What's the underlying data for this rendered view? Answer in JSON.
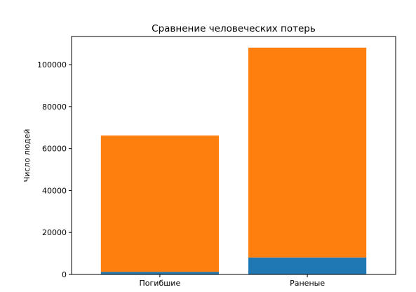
{
  "chart_data": {
    "type": "bar",
    "stacked": true,
    "title": "Сравнение человеческих потерь",
    "xlabel": "",
    "ylabel": "Число людей",
    "categories": [
      "Погибшие",
      "Раненые"
    ],
    "series": [
      {
        "values": [
          1200,
          8100
        ],
        "color": "#1f77b4"
      },
      {
        "values": [
          65000,
          100000
        ],
        "color": "#ff7f0e"
      }
    ],
    "ylim": [
      0,
      113400
    ],
    "yticks": [
      0,
      20000,
      40000,
      60000,
      80000,
      100000
    ],
    "grid": false,
    "legend": "none"
  }
}
